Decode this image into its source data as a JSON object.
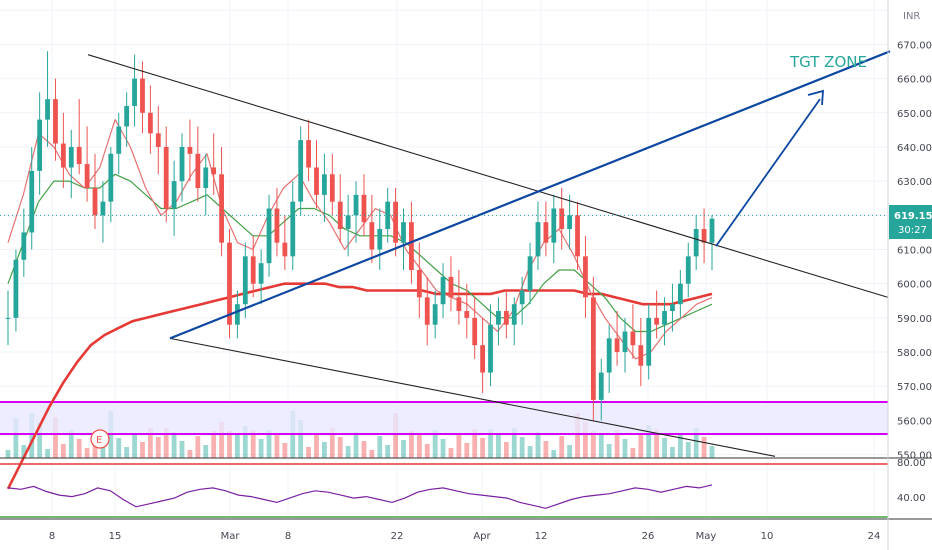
{
  "chart_data": {
    "type": "candlestick",
    "currency_label": "INR",
    "y_axis": {
      "ticks": [
        "670.00",
        "660.00",
        "650.00",
        "640.00",
        "630.00",
        "620.00",
        "610.00",
        "600.00",
        "590.00",
        "580.00",
        "570.00",
        "560.00",
        "550.00"
      ],
      "range": [
        549,
        683
      ]
    },
    "rsi_axis": {
      "ticks": [
        "80.00",
        "40.00"
      ],
      "range": [
        20,
        100
      ]
    },
    "x_axis": {
      "ticks": [
        "8",
        "15",
        "Mar",
        "8",
        "22",
        "Apr",
        "12",
        "26",
        "May",
        "10",
        "24"
      ]
    },
    "last_price": "619.15",
    "countdown": "30:27",
    "annotation": "TGT ZONE",
    "event_marker": "E",
    "colors": {
      "up": "#26a69a",
      "down": "#ef5350",
      "ma_long": "#e53935",
      "ma_fast": "#e57373",
      "ma_slow": "#43a047",
      "rsi": "#7b1fa2",
      "trend_blue": "#0d47a1",
      "box_band": "#d500f9",
      "target_text": "#26a69a"
    },
    "candles": [
      [
        590,
        598,
        582,
        590
      ],
      [
        590,
        610,
        586,
        607
      ],
      [
        607,
        622,
        602,
        615
      ],
      [
        615,
        640,
        610,
        633
      ],
      [
        633,
        656,
        626,
        648
      ],
      [
        648,
        668,
        640,
        654
      ],
      [
        654,
        660,
        636,
        641
      ],
      [
        641,
        650,
        628,
        634
      ],
      [
        634,
        645,
        625,
        640
      ],
      [
        640,
        654,
        632,
        635
      ],
      [
        635,
        646,
        624,
        628
      ],
      [
        628,
        638,
        616,
        620
      ],
      [
        620,
        630,
        612,
        624
      ],
      [
        624,
        640,
        618,
        638
      ],
      [
        638,
        650,
        632,
        646
      ],
      [
        646,
        656,
        640,
        652
      ],
      [
        652,
        667,
        646,
        660
      ],
      [
        660,
        665,
        644,
        650
      ],
      [
        650,
        658,
        638,
        644
      ],
      [
        644,
        652,
        632,
        640
      ],
      [
        640,
        646,
        618,
        622
      ],
      [
        622,
        636,
        614,
        630
      ],
      [
        630,
        644,
        624,
        640
      ],
      [
        640,
        648,
        630,
        638
      ],
      [
        638,
        646,
        624,
        628
      ],
      [
        628,
        638,
        620,
        634
      ],
      [
        634,
        644,
        626,
        632
      ],
      [
        632,
        640,
        608,
        612
      ],
      [
        612,
        616,
        584,
        588
      ],
      [
        588,
        598,
        584,
        594
      ],
      [
        594,
        612,
        590,
        608
      ],
      [
        608,
        614,
        596,
        600
      ],
      [
        600,
        610,
        594,
        606
      ],
      [
        606,
        626,
        602,
        622
      ],
      [
        622,
        628,
        608,
        612
      ],
      [
        612,
        620,
        604,
        608
      ],
      [
        608,
        630,
        604,
        624
      ],
      [
        624,
        646,
        620,
        642
      ],
      [
        642,
        648,
        630,
        634
      ],
      [
        634,
        642,
        622,
        626
      ],
      [
        626,
        638,
        618,
        632
      ],
      [
        632,
        638,
        620,
        624
      ],
      [
        624,
        632,
        612,
        616
      ],
      [
        616,
        626,
        608,
        620
      ],
      [
        620,
        630,
        612,
        626
      ],
      [
        626,
        632,
        614,
        618
      ],
      [
        618,
        626,
        606,
        610
      ],
      [
        610,
        622,
        604,
        616
      ],
      [
        616,
        628,
        612,
        624
      ],
      [
        624,
        628,
        608,
        612
      ],
      [
        612,
        622,
        604,
        618
      ],
      [
        618,
        624,
        600,
        604
      ],
      [
        604,
        612,
        590,
        596
      ],
      [
        596,
        602,
        582,
        588
      ],
      [
        588,
        598,
        584,
        594
      ],
      [
        594,
        606,
        590,
        602
      ],
      [
        602,
        608,
        592,
        596
      ],
      [
        596,
        604,
        588,
        592
      ],
      [
        592,
        600,
        584,
        590
      ],
      [
        590,
        596,
        578,
        582
      ],
      [
        582,
        590,
        568,
        574
      ],
      [
        574,
        594,
        570,
        588
      ],
      [
        588,
        596,
        582,
        592
      ],
      [
        592,
        598,
        584,
        588
      ],
      [
        588,
        596,
        582,
        594
      ],
      [
        594,
        602,
        588,
        598
      ],
      [
        598,
        612,
        594,
        608
      ],
      [
        608,
        624,
        604,
        618
      ],
      [
        618,
        624,
        608,
        612
      ],
      [
        612,
        626,
        606,
        622
      ],
      [
        622,
        628,
        610,
        616
      ],
      [
        616,
        626,
        610,
        620
      ],
      [
        620,
        624,
        604,
        608
      ],
      [
        608,
        614,
        590,
        596
      ],
      [
        596,
        602,
        560,
        566
      ],
      [
        566,
        578,
        560,
        574
      ],
      [
        574,
        588,
        568,
        584
      ],
      [
        584,
        592,
        576,
        580
      ],
      [
        580,
        590,
        574,
        586
      ],
      [
        586,
        594,
        578,
        582
      ],
      [
        582,
        590,
        570,
        576
      ],
      [
        576,
        594,
        572,
        590
      ],
      [
        590,
        598,
        584,
        588
      ],
      [
        588,
        596,
        582,
        592
      ],
      [
        592,
        600,
        586,
        594
      ],
      [
        594,
        604,
        590,
        600
      ],
      [
        600,
        612,
        596,
        608
      ],
      [
        608,
        620,
        604,
        616
      ],
      [
        616,
        622,
        606,
        612
      ],
      [
        612,
        620,
        604,
        619
      ]
    ],
    "ma_long": [
      540,
      548,
      556,
      564,
      571,
      577,
      582,
      585,
      587,
      589,
      590,
      591,
      592,
      593,
      594,
      595,
      596,
      597,
      598,
      599,
      600,
      600,
      600,
      600,
      599,
      599,
      598,
      598,
      598,
      598,
      598,
      597,
      597,
      597,
      597,
      597,
      598,
      598,
      598,
      598,
      598,
      598,
      597,
      597,
      596,
      595,
      594,
      594,
      594,
      595,
      596,
      597
    ],
    "ma_fast": [
      612,
      626,
      644,
      640,
      632,
      628,
      634,
      648,
      640,
      628,
      620,
      624,
      632,
      638,
      622,
      612,
      610,
      620,
      628,
      632,
      624,
      618,
      610,
      616,
      622,
      620,
      610,
      604,
      598,
      596,
      594,
      590,
      586,
      592,
      604,
      612,
      616,
      608,
      598,
      590,
      584,
      578,
      580,
      586,
      590,
      594,
      596
    ],
    "ma_slow": [
      600,
      612,
      624,
      630,
      630,
      628,
      628,
      632,
      630,
      626,
      622,
      622,
      624,
      626,
      622,
      618,
      614,
      614,
      618,
      622,
      622,
      620,
      616,
      614,
      614,
      614,
      612,
      608,
      604,
      600,
      598,
      594,
      590,
      590,
      594,
      600,
      604,
      604,
      600,
      596,
      590,
      586,
      586,
      588,
      590,
      592,
      594
    ],
    "rsi": [
      60,
      58,
      62,
      55,
      50,
      48,
      52,
      60,
      56,
      44,
      34,
      38,
      42,
      46,
      54,
      58,
      60,
      56,
      50,
      48,
      44,
      40,
      46,
      52,
      56,
      54,
      50,
      46,
      48,
      44,
      40,
      46,
      54,
      58,
      60,
      56,
      52,
      50,
      48,
      46,
      40,
      36,
      32,
      38,
      44,
      48,
      50,
      52,
      56,
      60,
      58,
      54,
      58,
      62,
      60,
      64
    ]
  }
}
